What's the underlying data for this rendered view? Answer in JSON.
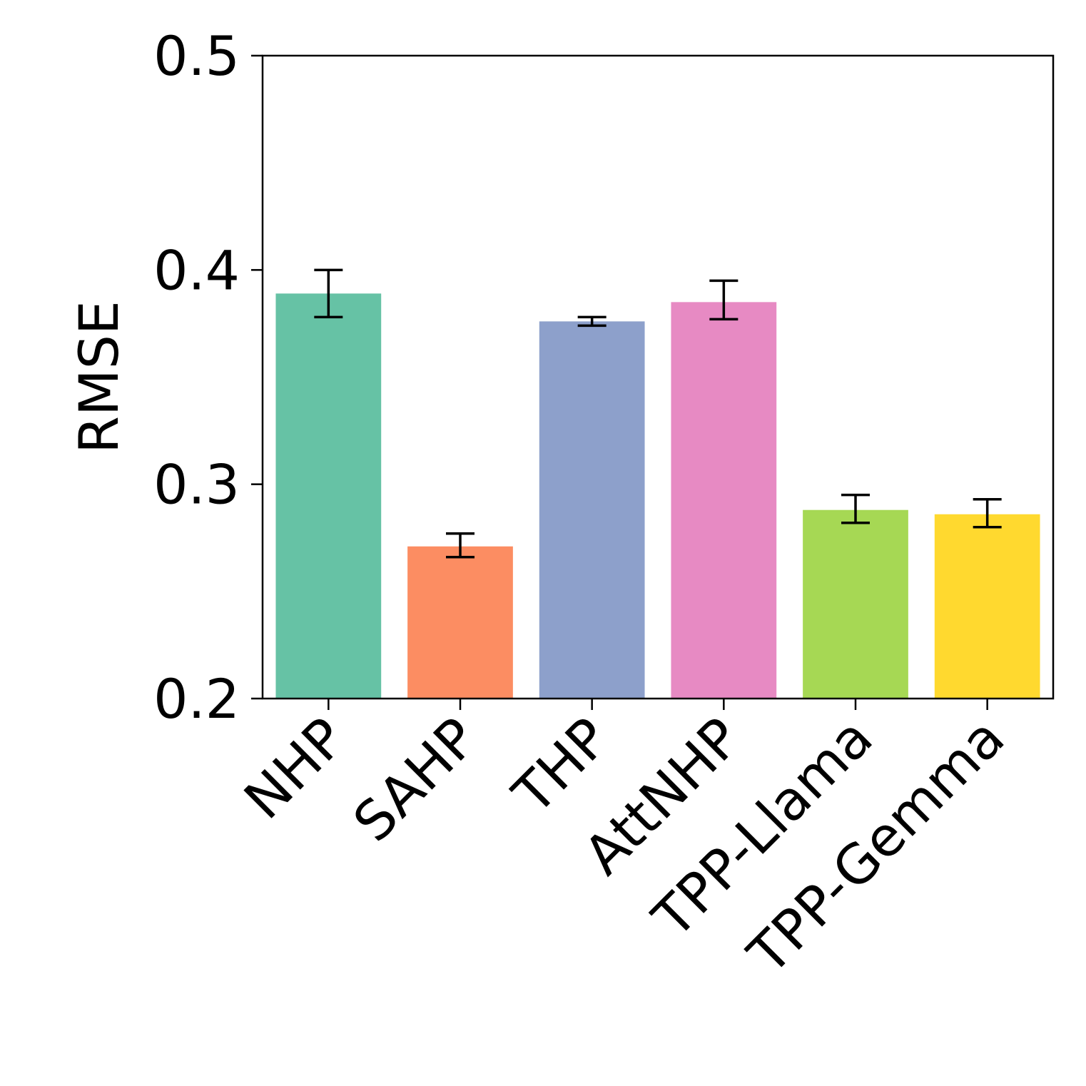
{
  "chart_data": {
    "type": "bar",
    "title": "",
    "xlabel": "",
    "ylabel": "RMSE",
    "ylim": [
      0.2,
      0.5
    ],
    "yticks": [
      {
        "value": 0.2,
        "label": "0.2"
      },
      {
        "value": 0.3,
        "label": "0.3"
      },
      {
        "value": 0.4,
        "label": "0.4"
      },
      {
        "value": 0.5,
        "label": "0.5"
      }
    ],
    "categories": [
      "NHP",
      "SAHP",
      "THP",
      "AttNHP",
      "TPP-Llama",
      "TPP-Gemma"
    ],
    "values": [
      0.389,
      0.271,
      0.376,
      0.385,
      0.288,
      0.286
    ],
    "error_low": [
      0.378,
      0.266,
      0.374,
      0.377,
      0.282,
      0.28
    ],
    "error_high": [
      0.4,
      0.277,
      0.378,
      0.395,
      0.295,
      0.293
    ],
    "colors": [
      "#66c2a5",
      "#fc8d62",
      "#8da0cb",
      "#e78ac3",
      "#a6d854",
      "#ffd92f"
    ],
    "grid": false,
    "legend": "none"
  }
}
